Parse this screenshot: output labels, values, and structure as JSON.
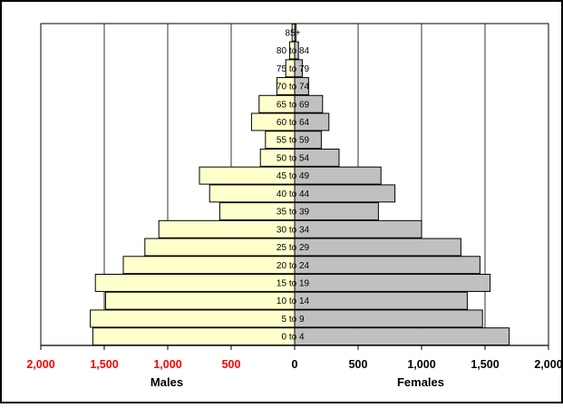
{
  "chart_data": {
    "type": "bar",
    "orientation": "horizontal-population-pyramid",
    "categories": [
      "0 to 4",
      "5 to 9",
      "10 to 14",
      "15 to 19",
      "20 to 24",
      "25 to 29",
      "30 to 34",
      "35 to 39",
      "40 to 44",
      "45 to 49",
      "50 to 54",
      "55 to 59",
      "60 to 64",
      "65 to 69",
      "70 to 74",
      "75 to 79",
      "80 to 84",
      "85+"
    ],
    "series": [
      {
        "name": "Males",
        "values": [
          1590,
          1610,
          1490,
          1570,
          1350,
          1180,
          1070,
          590,
          670,
          750,
          270,
          230,
          340,
          280,
          140,
          70,
          40,
          20
        ],
        "color": "#ffffcc"
      },
      {
        "name": "Females",
        "values": [
          1690,
          1480,
          1360,
          1540,
          1460,
          1310,
          1000,
          660,
          790,
          680,
          350,
          210,
          270,
          220,
          110,
          60,
          30,
          10
        ],
        "color": "#c0c0c0"
      }
    ],
    "xlim": [
      -2000,
      2000
    ],
    "xticks": [
      -2000,
      -1500,
      -1000,
      -500,
      0,
      500,
      1000,
      1500,
      2000
    ],
    "tick_labels": [
      "2,000",
      "1,500",
      "1,000",
      "500",
      "0",
      "500",
      "1,000",
      "1,500",
      "2,000"
    ],
    "xlabel_left": "Males",
    "xlabel_right": "Females",
    "grid": true,
    "colors": {
      "negative_tick": "#ff0000",
      "positive_tick": "#000000"
    }
  }
}
